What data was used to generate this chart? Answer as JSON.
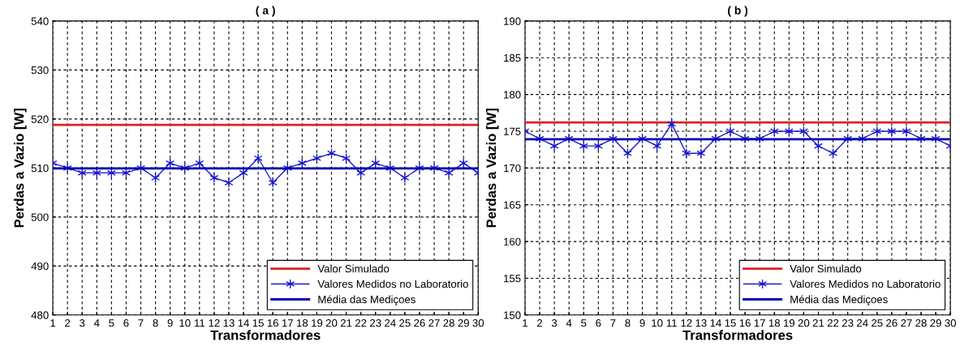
{
  "chart_data": [
    {
      "type": "line",
      "title": "( a )",
      "xlabel": "Transformadores",
      "ylabel": "Perdas a Vazio [W]",
      "xlim": [
        1,
        30
      ],
      "xticks": [
        1,
        2,
        3,
        4,
        5,
        6,
        7,
        8,
        9,
        10,
        11,
        12,
        13,
        14,
        15,
        16,
        17,
        18,
        19,
        20,
        21,
        22,
        23,
        24,
        25,
        26,
        27,
        28,
        29,
        30
      ],
      "ylim": [
        480,
        540
      ],
      "yticks": [
        480,
        490,
        500,
        510,
        520,
        530,
        540
      ],
      "grid": true,
      "legend": "bottom right",
      "series": [
        {
          "name": "Valor Simulado",
          "color": "#e02020",
          "x": [
            1,
            30
          ],
          "values": [
            518.8,
            518.8
          ],
          "marker": "none"
        },
        {
          "name": "Valores Medidos no Laboratorio",
          "color": "#1a1acc",
          "x": [
            1,
            2,
            3,
            4,
            5,
            6,
            7,
            8,
            9,
            10,
            11,
            12,
            13,
            14,
            15,
            16,
            17,
            18,
            19,
            20,
            21,
            22,
            23,
            24,
            25,
            26,
            27,
            28,
            29,
            30
          ],
          "values": [
            511,
            510,
            509,
            509,
            509,
            509,
            510,
            508,
            511,
            510,
            511,
            508,
            507,
            509,
            512,
            507,
            510,
            511,
            512,
            513,
            512,
            509,
            511,
            510,
            508,
            510,
            510,
            509,
            511,
            509
          ],
          "marker": "cross"
        },
        {
          "name": "Média das Mediçoes",
          "color": "#0000b4",
          "x": [
            1,
            30
          ],
          "values": [
            509.9,
            509.9
          ],
          "marker": "none"
        }
      ]
    },
    {
      "type": "line",
      "title": "( b )",
      "xlabel": "Transformadores",
      "ylabel": "Perdas a Vazio [W]",
      "xlim": [
        1,
        30
      ],
      "xticks": [
        1,
        2,
        3,
        4,
        5,
        6,
        7,
        8,
        9,
        10,
        11,
        12,
        13,
        14,
        15,
        16,
        17,
        18,
        19,
        20,
        21,
        22,
        23,
        24,
        25,
        26,
        27,
        28,
        29,
        30
      ],
      "ylim": [
        150,
        190
      ],
      "yticks": [
        150,
        155,
        160,
        165,
        170,
        175,
        180,
        185,
        190
      ],
      "grid": true,
      "legend": "bottom right",
      "series": [
        {
          "name": "Valor Simulado",
          "color": "#e02020",
          "x": [
            1,
            30
          ],
          "values": [
            176.2,
            176.2
          ],
          "marker": "none"
        },
        {
          "name": "Valores Medidos no Laboratorio",
          "color": "#1a1acc",
          "x": [
            1,
            2,
            3,
            4,
            5,
            6,
            7,
            8,
            9,
            10,
            11,
            12,
            13,
            14,
            15,
            16,
            17,
            18,
            19,
            20,
            21,
            22,
            23,
            24,
            25,
            26,
            27,
            28,
            29,
            30
          ],
          "values": [
            175,
            174,
            173,
            174,
            173,
            173,
            174,
            172,
            174,
            173,
            176,
            172,
            172,
            174,
            175,
            174,
            174,
            175,
            175,
            175,
            173,
            172,
            174,
            174,
            175,
            175,
            175,
            174,
            174,
            173
          ],
          "marker": "cross"
        },
        {
          "name": "Média das Mediçoes",
          "color": "#0000b4",
          "x": [
            1,
            30
          ],
          "values": [
            173.9,
            173.9
          ],
          "marker": "none"
        }
      ]
    }
  ]
}
